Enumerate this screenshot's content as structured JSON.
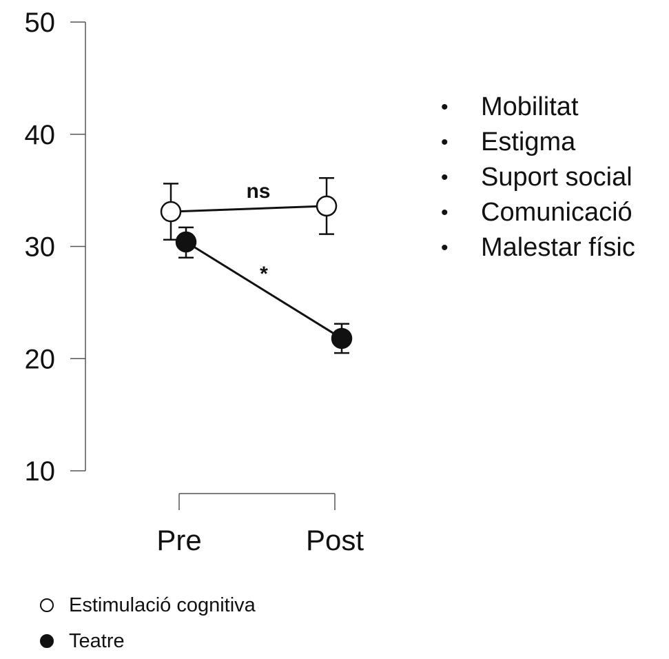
{
  "chart_data": {
    "type": "line",
    "categories": [
      "Pre",
      "Post"
    ],
    "yticks": [
      10,
      20,
      30,
      40,
      50
    ],
    "ylim": [
      10,
      50
    ],
    "series": [
      {
        "name": "Estimulació cognitiva",
        "marker": "open",
        "values": [
          33.1,
          33.6
        ],
        "err_low": [
          30.6,
          31.1
        ],
        "err_high": [
          35.6,
          36.1
        ],
        "color": "#111111"
      },
      {
        "name": "Teatre",
        "marker": "filled",
        "values": [
          30.4,
          21.8
        ],
        "err_low": [
          29.0,
          20.5
        ],
        "err_high": [
          31.7,
          23.1
        ],
        "color": "#111111"
      }
    ],
    "annotations": [
      {
        "text": "ns",
        "series": 0
      },
      {
        "text": "*",
        "series": 1
      }
    ],
    "grid": false,
    "legend": "bottom-left"
  },
  "bullet_items": [
    "Mobilitat",
    "Estigma",
    "Suport social",
    "Comunicació",
    "Malestar físic"
  ],
  "bullet_symbol": "•",
  "legend": [
    {
      "label": "Estimulació cognitiva",
      "marker": "open"
    },
    {
      "label": "Teatre",
      "marker": "filled"
    }
  ]
}
